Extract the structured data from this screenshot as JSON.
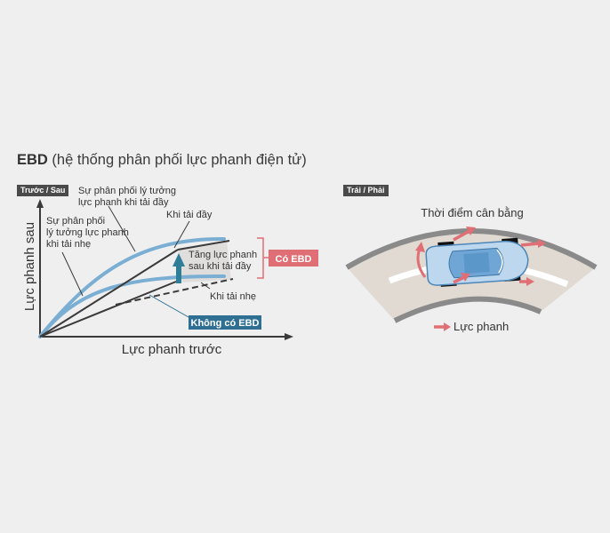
{
  "title": {
    "bold": "EBD",
    "rest": " (hệ thống phân phối lực phanh điện tử)"
  },
  "left_panel": {
    "badge": "Trước / Sau",
    "y_axis": "Lực phanh sau",
    "x_axis": "Lực phanh trước",
    "label_ideal_full_1": "Sự phân phối lý tưởng",
    "label_ideal_full_2": "lực phanh khi tải đầy",
    "label_ideal_light_1": "Sự phân phối",
    "label_ideal_light_2": "lý tưởng lực phanh",
    "label_ideal_light_3": "khi tải nhẹ",
    "label_full_load": "Khi tải đầy",
    "label_increase_1": "Tăng lực phanh",
    "label_increase_2": "sau khi tải đầy",
    "label_light_load": "Khi tải nhẹ",
    "tag_with_ebd": "Có EBD",
    "tag_without_ebd": "Không có EBD"
  },
  "right_panel": {
    "badge": "Trái / Phải",
    "caption": "Thời điểm cân bằng",
    "legend": "Lực phanh"
  },
  "colors": {
    "curve_blue": "#7aaed2",
    "dark_line": "#3a3a3a",
    "teal_arrow": "#2f7e97",
    "red_tag": "#e06f75",
    "blue_tag": "#2f6f93",
    "road_gray": "#8a8a8a",
    "road_fill": "#e0dad3",
    "car_blue": "#6fa6d6"
  }
}
